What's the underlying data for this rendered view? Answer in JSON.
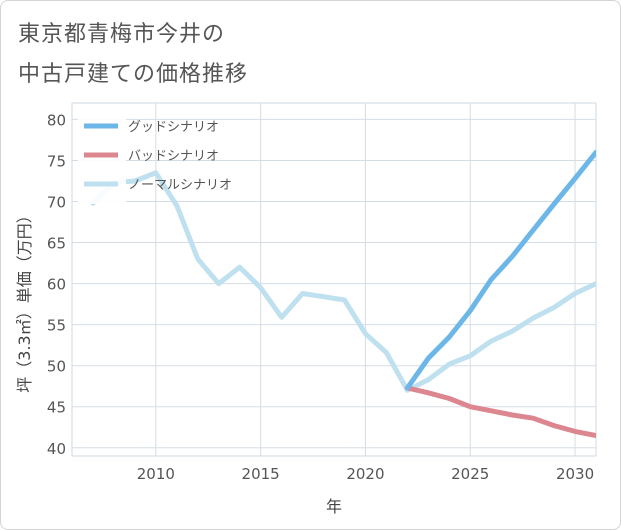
{
  "title_lines": [
    "東京都青梅市今井の",
    "中古戸建ての価格推移"
  ],
  "chart_data": {
    "type": "line",
    "xlabel": "年",
    "ylabel": "坪（3.3㎡）単価（万円）",
    "xlim": [
      2006,
      2031
    ],
    "ylim": [
      39,
      82
    ],
    "x_ticks": [
      2010,
      2015,
      2020,
      2025,
      2030
    ],
    "y_ticks": [
      40,
      45,
      50,
      55,
      60,
      65,
      70,
      75,
      80
    ],
    "grid": true,
    "legend_position": "top-left",
    "series": [
      {
        "name": "グッドシナリオ",
        "color": "#6cb6e8",
        "x": [
          2022,
          2023,
          2024,
          2025,
          2026,
          2027,
          2028,
          2029,
          2030,
          2031
        ],
        "y": [
          47.3,
          50.9,
          53.5,
          56.7,
          60.5,
          63.3,
          66.5,
          69.7,
          72.8,
          76.0
        ]
      },
      {
        "name": "バッドシナリオ",
        "color": "#dc8790",
        "x": [
          2022,
          2023,
          2024,
          2025,
          2026,
          2027,
          2028,
          2029,
          2030,
          2031
        ],
        "y": [
          47.3,
          46.7,
          46.0,
          45.0,
          44.5,
          44.0,
          43.6,
          42.7,
          42.0,
          41.5
        ]
      },
      {
        "name": "ノーマルシナリオ",
        "color": "#bfe0ee",
        "x": [
          2007,
          2008,
          2009,
          2010,
          2011,
          2012,
          2013,
          2014,
          2015,
          2016,
          2017,
          2018,
          2019,
          2020,
          2021,
          2022,
          2023,
          2024,
          2025,
          2026,
          2027,
          2028,
          2029,
          2030,
          2031
        ],
        "y": [
          69.8,
          72.3,
          72.5,
          73.5,
          69.5,
          63.0,
          60.0,
          62.0,
          59.5,
          55.9,
          58.8,
          58.4,
          58.0,
          53.9,
          51.6,
          47.0,
          48.3,
          50.2,
          51.2,
          53.0,
          54.2,
          55.8,
          57.1,
          58.8,
          60.0
        ]
      }
    ]
  }
}
